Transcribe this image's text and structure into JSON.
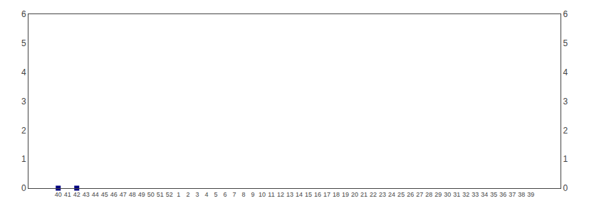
{
  "chart_data": {
    "type": "scatter",
    "categories": [
      "40",
      "41",
      "42",
      "43",
      "44",
      "45",
      "46",
      "47",
      "48",
      "49",
      "50",
      "51",
      "52",
      "1",
      "2",
      "3",
      "4",
      "5",
      "6",
      "7",
      "8",
      "9",
      "10",
      "11",
      "12",
      "13",
      "14",
      "15",
      "16",
      "17",
      "18",
      "19",
      "20",
      "21",
      "22",
      "23",
      "24",
      "25",
      "26",
      "27",
      "28",
      "29",
      "30",
      "31",
      "32",
      "33",
      "34",
      "35",
      "36",
      "37",
      "38",
      "39"
    ],
    "values": [
      0.0,
      null,
      0.0,
      null,
      null,
      null,
      null,
      null,
      null,
      null,
      null,
      null,
      null,
      null,
      null,
      null,
      null,
      null,
      null,
      null,
      null,
      null,
      null,
      null,
      null,
      null,
      null,
      null,
      null,
      null,
      null,
      null,
      null,
      null,
      null,
      null,
      null,
      null,
      null,
      null,
      null,
      null,
      null,
      null,
      null,
      null,
      null,
      null,
      null,
      null,
      null,
      null
    ],
    "color": "#000080",
    "marker": "square",
    "ylim": [
      0,
      6
    ],
    "yticks": [
      0,
      1,
      2,
      3,
      4,
      5,
      6
    ],
    "y2lim": [
      0,
      6
    ],
    "y2ticks": [
      0,
      1,
      2,
      3,
      4,
      5,
      6
    ],
    "grid": false
  }
}
